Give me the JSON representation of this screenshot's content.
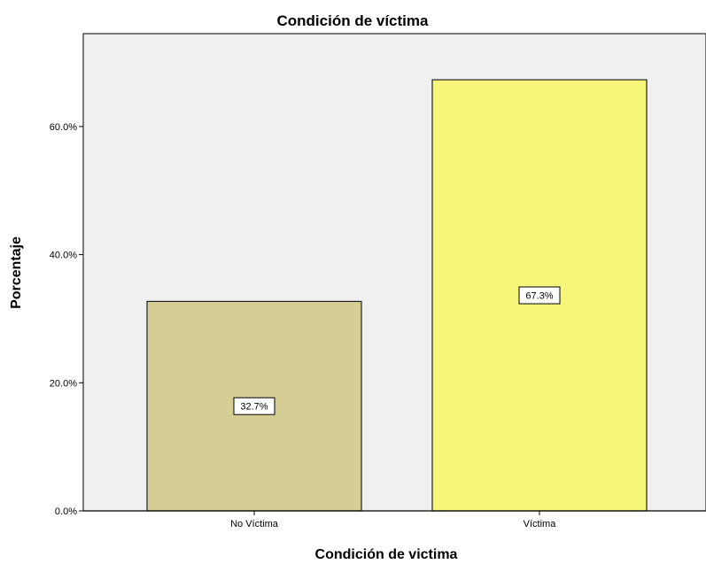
{
  "chart_data": {
    "type": "bar",
    "title": "Condición de víctima",
    "xlabel": "Condición de victima",
    "ylabel": "Porcentaje",
    "categories": [
      "No Víctima",
      "Víctima"
    ],
    "values": [
      32.7,
      67.3
    ],
    "data_labels": [
      "32.7%",
      "67.3%"
    ],
    "yticks": [
      0,
      20,
      40,
      60
    ],
    "ytick_labels": [
      "0.0%",
      "20.0%",
      "40.0%",
      "60.0%"
    ],
    "ylim": [
      0,
      74.5
    ],
    "grid": false,
    "bar_colors": [
      "#d4cd94",
      "#f7f57a"
    ],
    "plot_background": "#f0f0f0"
  }
}
